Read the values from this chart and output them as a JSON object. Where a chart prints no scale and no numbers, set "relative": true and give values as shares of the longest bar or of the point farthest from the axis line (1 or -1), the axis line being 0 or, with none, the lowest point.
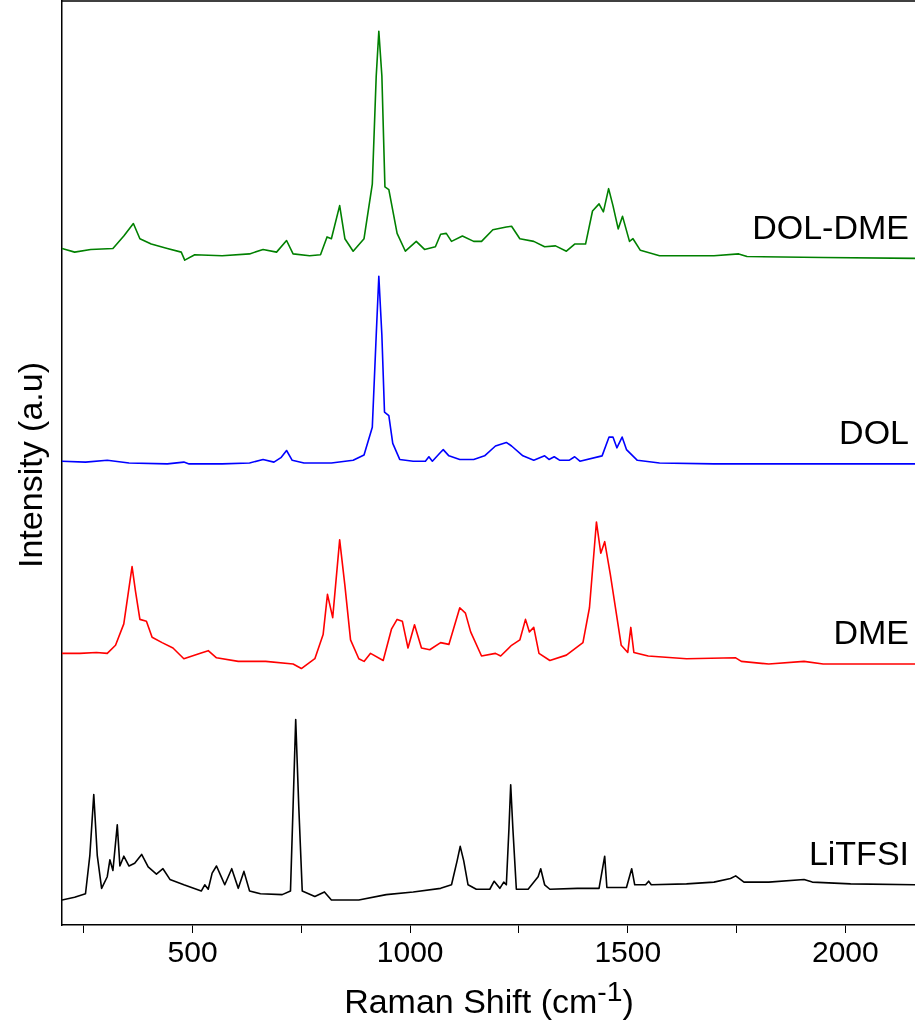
{
  "chart_data": {
    "type": "line",
    "xlabel": "Raman Shift (cm$^{-1}$)",
    "ylabel": "Intensity (a.u)",
    "relative": true,
    "legend": false,
    "grid": false,
    "marker": "none",
    "line_style": "solid",
    "xlim": [
      200,
      2160
    ],
    "xticks": [
      {
        "value": 250,
        "label": null
      },
      500,
      {
        "value": 750,
        "label": null
      },
      1000,
      {
        "value": 1250,
        "label": null
      },
      1500,
      {
        "value": 1750,
        "label": null
      },
      2000
    ],
    "series": [
      {
        "name": "DOL-DME",
        "color": "#008000",
        "x": [
          200,
          229,
          266,
          317,
          342,
          364,
          379,
          405,
          442,
          474,
          482,
          505,
          568,
          631,
          662,
          693,
          716,
          731,
          769,
          794,
          809,
          819,
          838,
          850,
          869,
          894,
          913,
          922,
          928,
          935,
          942,
          951,
          970,
          989,
          1014,
          1033,
          1058,
          1070,
          1083,
          1095,
          1120,
          1146,
          1164,
          1190,
          1221,
          1233,
          1252,
          1284,
          1309,
          1334,
          1359,
          1378,
          1403,
          1419,
          1434,
          1444,
          1456,
          1466,
          1478,
          1488,
          1504,
          1512,
          1529,
          1573,
          1698,
          1755,
          1774,
          1949,
          2160
        ],
        "values": [
          0.757,
          0.753,
          0.756,
          0.757,
          0.771,
          0.785,
          0.768,
          0.762,
          0.757,
          0.753,
          0.744,
          0.75,
          0.749,
          0.751,
          0.756,
          0.753,
          0.766,
          0.751,
          0.749,
          0.75,
          0.77,
          0.768,
          0.805,
          0.768,
          0.754,
          0.768,
          0.829,
          0.95,
          1.0,
          0.95,
          0.826,
          0.823,
          0.774,
          0.754,
          0.765,
          0.756,
          0.759,
          0.773,
          0.774,
          0.765,
          0.771,
          0.765,
          0.765,
          0.778,
          0.781,
          0.782,
          0.768,
          0.765,
          0.759,
          0.76,
          0.754,
          0.762,
          0.762,
          0.799,
          0.807,
          0.798,
          0.824,
          0.805,
          0.779,
          0.793,
          0.765,
          0.768,
          0.755,
          0.749,
          0.749,
          0.751,
          0.748,
          0.747,
          0.746
        ]
      },
      {
        "name": "DOL",
        "color": "#0000ff",
        "x": [
          200,
          254,
          304,
          354,
          442,
          480,
          492,
          568,
          631,
          662,
          687,
          703,
          716,
          729,
          756,
          819,
          869,
          894,
          913,
          922,
          928,
          935,
          941,
          951,
          960,
          976,
          1007,
          1035,
          1043,
          1051,
          1070,
          1076,
          1089,
          1114,
          1146,
          1171,
          1196,
          1221,
          1233,
          1259,
          1284,
          1309,
          1319,
          1331,
          1344,
          1365,
          1378,
          1390,
          1441,
          1457,
          1466,
          1475,
          1487,
          1497,
          1522,
          1573,
          1698,
          1949,
          2160
        ],
        "values": [
          0.519,
          0.518,
          0.52,
          0.517,
          0.516,
          0.518,
          0.516,
          0.516,
          0.517,
          0.521,
          0.518,
          0.523,
          0.531,
          0.52,
          0.517,
          0.517,
          0.52,
          0.526,
          0.557,
          0.66,
          0.726,
          0.66,
          0.574,
          0.57,
          0.539,
          0.521,
          0.519,
          0.519,
          0.524,
          0.519,
          0.529,
          0.532,
          0.525,
          0.521,
          0.521,
          0.525,
          0.536,
          0.54,
          0.536,
          0.525,
          0.52,
          0.525,
          0.521,
          0.524,
          0.52,
          0.52,
          0.524,
          0.519,
          0.525,
          0.546,
          0.546,
          0.534,
          0.546,
          0.532,
          0.52,
          0.517,
          0.516,
          0.516,
          0.516
        ]
      },
      {
        "name": "DME",
        "color": "#ff0000",
        "x": [
          200,
          241,
          279,
          304,
          323,
          342,
          361,
          369,
          379,
          394,
          407,
          430,
          455,
          480,
          518,
          536,
          555,
          605,
          668,
          731,
          750,
          781,
          800,
          810,
          822,
          838,
          850,
          863,
          882,
          894,
          909,
          938,
          957,
          970,
          982,
          995,
          1010,
          1026,
          1045,
          1070,
          1089,
          1114,
          1127,
          1139,
          1164,
          1196,
          1208,
          1233,
          1252,
          1265,
          1274,
          1284,
          1296,
          1321,
          1359,
          1397,
          1412,
          1428,
          1438,
          1447,
          1460,
          1485,
          1500,
          1507,
          1514,
          1547,
          1635,
          1748,
          1761,
          1824,
          1905,
          1949,
          2160
        ],
        "values": [
          0.304,
          0.304,
          0.305,
          0.304,
          0.313,
          0.337,
          0.401,
          0.373,
          0.342,
          0.34,
          0.322,
          0.316,
          0.31,
          0.298,
          0.304,
          0.307,
          0.299,
          0.295,
          0.295,
          0.292,
          0.287,
          0.298,
          0.325,
          0.37,
          0.344,
          0.431,
          0.38,
          0.319,
          0.298,
          0.295,
          0.304,
          0.296,
          0.331,
          0.342,
          0.34,
          0.31,
          0.336,
          0.31,
          0.308,
          0.316,
          0.314,
          0.355,
          0.349,
          0.328,
          0.301,
          0.304,
          0.301,
          0.313,
          0.319,
          0.342,
          0.328,
          0.333,
          0.304,
          0.296,
          0.302,
          0.316,
          0.355,
          0.451,
          0.416,
          0.429,
          0.392,
          0.313,
          0.305,
          0.333,
          0.305,
          0.301,
          0.298,
          0.299,
          0.295,
          0.292,
          0.295,
          0.292,
          0.292
        ]
      },
      {
        "name": "LiTFSI",
        "color": "#000000",
        "x": [
          200,
          229,
          254,
          264,
          273,
          281,
          291,
          304,
          310,
          317,
          327,
          333,
          342,
          354,
          367,
          383,
          398,
          417,
          432,
          448,
          480,
          520,
          528,
          536,
          545,
          555,
          565,
          574,
          590,
          605,
          618,
          631,
          656,
          706,
          725,
          731,
          737,
          744,
          752,
          781,
          803,
          819,
          882,
          945,
          1007,
          1070,
          1095,
          1108,
          1115,
          1123,
          1133,
          1152,
          1183,
          1193,
          1206,
          1215,
          1221,
          1227,
          1231,
          1236,
          1244,
          1271,
          1294,
          1300,
          1309,
          1321,
          1384,
          1434,
          1443,
          1447,
          1452,
          1497,
          1509,
          1516,
          1541,
          1548,
          1554,
          1635,
          1698,
          1736,
          1748,
          1767,
          1824,
          1905,
          1924,
          2012,
          2160
        ],
        "values": [
          0.028,
          0.031,
          0.035,
          0.078,
          0.146,
          0.078,
          0.041,
          0.054,
          0.073,
          0.061,
          0.112,
          0.066,
          0.077,
          0.066,
          0.069,
          0.079,
          0.065,
          0.057,
          0.063,
          0.051,
          0.045,
          0.038,
          0.045,
          0.04,
          0.058,
          0.066,
          0.055,
          0.045,
          0.063,
          0.041,
          0.06,
          0.038,
          0.035,
          0.034,
          0.038,
          0.133,
          0.23,
          0.133,
          0.038,
          0.032,
          0.037,
          0.028,
          0.028,
          0.034,
          0.037,
          0.041,
          0.045,
          0.072,
          0.088,
          0.072,
          0.045,
          0.04,
          0.04,
          0.049,
          0.041,
          0.048,
          0.045,
          0.108,
          0.157,
          0.108,
          0.04,
          0.04,
          0.054,
          0.063,
          0.045,
          0.04,
          0.041,
          0.041,
          0.066,
          0.077,
          0.042,
          0.042,
          0.063,
          0.045,
          0.045,
          0.049,
          0.045,
          0.046,
          0.048,
          0.052,
          0.055,
          0.048,
          0.048,
          0.051,
          0.048,
          0.046,
          0.045
        ]
      }
    ]
  }
}
